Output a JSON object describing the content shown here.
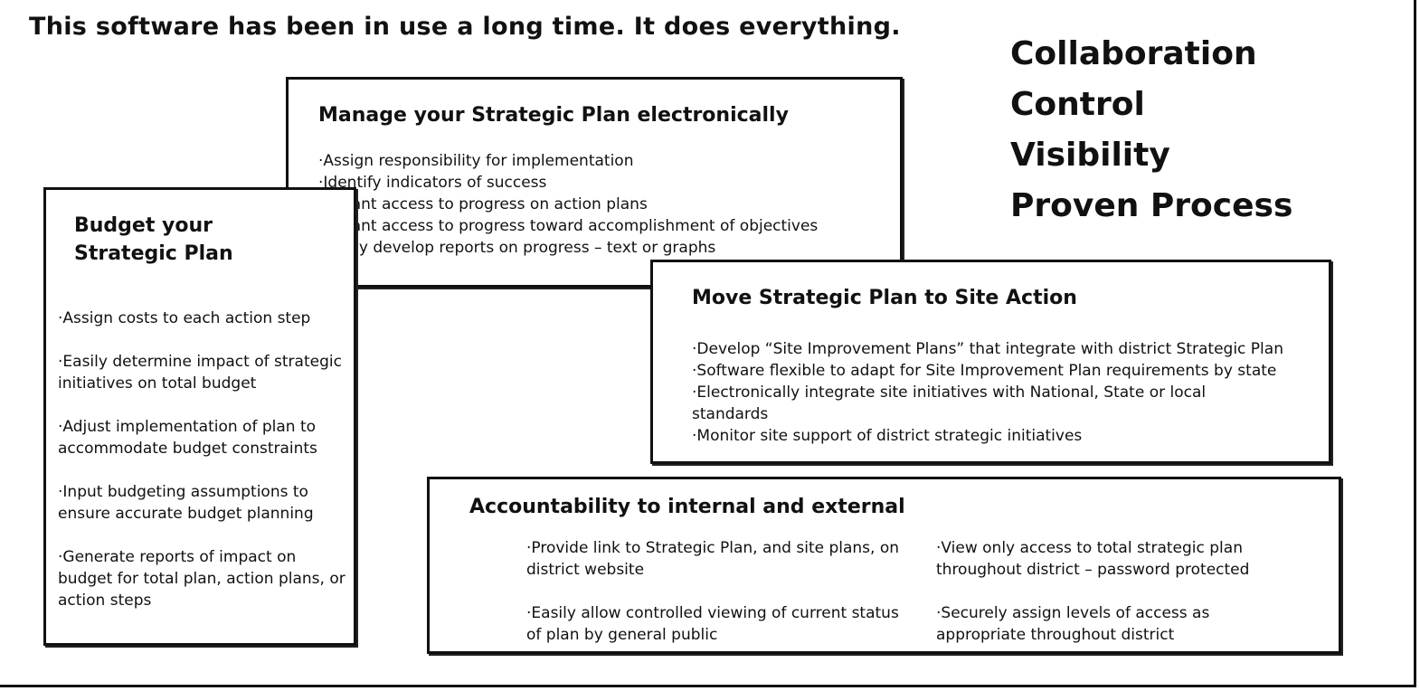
{
  "headline": "This software has been in use a long time. It does everything.",
  "keywords": [
    "Collaboration",
    "Control",
    "Visibility",
    "Proven Process"
  ],
  "manage": {
    "title": "Manage your Strategic Plan electronically",
    "items": [
      "·Assign responsibility for implementation",
      "·Identify indicators of success",
      "·Instant access to progress on action plans",
      "·Instant access to progress toward accomplishment of objectives",
      "·Easily develop reports on progress – text or graphs"
    ]
  },
  "budget": {
    "title_line1": "Budget your",
    "title_line2": "Strategic Plan",
    "items": [
      "·Assign costs to each action step",
      "·Easily determine impact of strategic initiatives on total budget",
      "·Adjust implementation of plan to accommodate budget constraints",
      "·Input budgeting assumptions to ensure accurate budget planning",
      "·Generate reports of impact on budget for total plan, action plans, or action steps"
    ]
  },
  "site": {
    "title": "Move Strategic Plan to Site Action",
    "items": [
      "·Develop “Site Improvement Plans” that integrate with district Strategic Plan",
      "·Software flexible to adapt for Site Improvement Plan requirements by state",
      "·Electronically integrate site initiatives with National, State or local standards",
      "·Monitor site support of district strategic initiatives"
    ]
  },
  "accountability": {
    "title": "Accountability to internal and external",
    "left_items": [
      "·Provide link to Strategic Plan, and site plans, on district website",
      "·Easily allow controlled viewing of current status of plan by general public"
    ],
    "right_items": [
      "·View only access to total strategic plan throughout district – password protected",
      "·Securely assign levels of access as appropriate throughout district"
    ]
  }
}
